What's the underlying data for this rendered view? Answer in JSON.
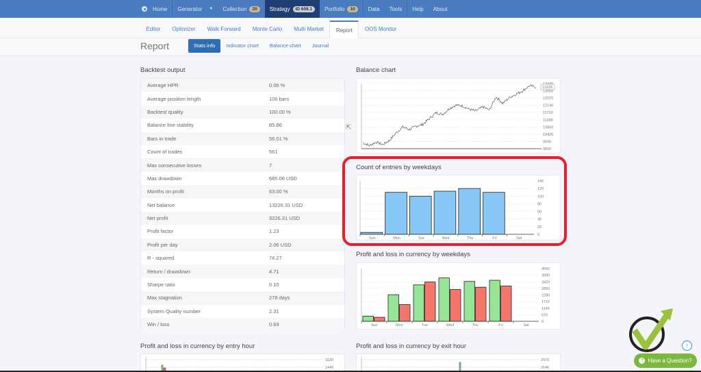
{
  "topnav": {
    "items": [
      {
        "label": "Home",
        "icon": "gear-icon"
      },
      {
        "label": "Generator",
        "caret": "▼"
      },
      {
        "label": "Collection",
        "badge": "20"
      },
      {
        "label": "Strategy",
        "badge": "ID 608.1",
        "active": true
      },
      {
        "label": "Portfolio",
        "badge": "10"
      },
      {
        "label": "Data"
      },
      {
        "label": "Tools"
      },
      {
        "label": "Help"
      },
      {
        "label": "About"
      }
    ]
  },
  "subnav": {
    "tabs": [
      "Editor",
      "Optimizer",
      "Walk Forward",
      "Monte Carlo",
      "Multi Market",
      "Report",
      "OOS Monitor"
    ],
    "active": "Report"
  },
  "report": {
    "title": "Report",
    "pills": [
      "Stats info",
      "Indicator chart",
      "Balance chart",
      "Journal"
    ],
    "active_pill": "Stats info"
  },
  "backtest": {
    "title": "Backtest output",
    "rows": [
      {
        "k": "Average HPR",
        "v": "0.06 %"
      },
      {
        "k": "Average position length",
        "v": "106 bars"
      },
      {
        "k": "Backtest quality",
        "v": "100.00 %"
      },
      {
        "k": "Balance line stability",
        "v": "85.86"
      },
      {
        "k": "Bars in trade",
        "v": "56.01 %"
      },
      {
        "k": "Count of trades",
        "v": "561"
      },
      {
        "k": "Max consecutive losses",
        "v": "7"
      },
      {
        "k": "Max drawdown",
        "v": "685.06 USD"
      },
      {
        "k": "Months on profit",
        "v": "63.00 %"
      },
      {
        "k": "Net balance",
        "v": "13226.31 USD"
      },
      {
        "k": "Net profit",
        "v": "3226.31 USD"
      },
      {
        "k": "Profit factor",
        "v": "1.23"
      },
      {
        "k": "Profit per day",
        "v": "2.06 USD"
      },
      {
        "k": "R - squared",
        "v": "74.27"
      },
      {
        "k": "Return / drawdown",
        "v": "4.71"
      },
      {
        "k": "Sharpe ratio",
        "v": "0.10"
      },
      {
        "k": "Max stagnation",
        "v": "278 days"
      },
      {
        "k": "System Quality number",
        "v": "2.31"
      },
      {
        "k": "Win / loss",
        "v": "0.69"
      }
    ]
  },
  "panels": {
    "balance": "Balance chart",
    "entries": "Count of entries by weekdays",
    "pnl_weekdays": "Profit and loss in currency by weekdays",
    "pnl_entry_hour": "Profit and loss in currency by entry hour",
    "pnl_exit_hour": "Profit and loss in currency by exit hour"
  },
  "chart_data": [
    {
      "type": "line",
      "title": "Balance chart",
      "yticks": [
        13430,
        13000,
        12570,
        12140,
        11710,
        11280,
        10850,
        10420,
        9990,
        9560
      ],
      "last_value_tag": "13226",
      "ylim": [
        9560,
        13430
      ],
      "trend_points": [
        9900,
        9750,
        9950,
        9800,
        10050,
        10500,
        10850,
        10700,
        10900,
        11000,
        11350,
        11700,
        11600,
        11950,
        12150,
        12100,
        11900,
        11800,
        12050,
        11850,
        12650,
        12250,
        12600,
        12800,
        13000,
        13300,
        13226
      ]
    },
    {
      "type": "bar",
      "title": "Count of entries by weekdays",
      "categories": [
        "Sun",
        "Mon",
        "Tue",
        "Wed",
        "Thu",
        "Fri",
        "Sat"
      ],
      "values": [
        5,
        110,
        100,
        113,
        120,
        110,
        0
      ],
      "yticks": [
        0,
        20,
        40,
        60,
        80,
        100,
        120,
        140
      ],
      "ylim": [
        0,
        140
      ],
      "color": "#87c8f7"
    },
    {
      "type": "bar",
      "title": "Profit and loss in currency by weekdays",
      "categories": [
        "Sun",
        "Mon",
        "Tue",
        "Wed",
        "Thu",
        "Fri",
        "Sat"
      ],
      "series": [
        {
          "name": "Profit",
          "color": "#96e596",
          "values": [
            450,
            2300,
            3150,
            3750,
            3450,
            3550,
            0
          ]
        },
        {
          "name": "Loss",
          "color": "#f7766b",
          "values": [
            350,
            1450,
            3400,
            2750,
            2950,
            3050,
            0
          ]
        }
      ],
      "yticks": [
        0,
        570,
        1140,
        1710,
        2280,
        2850,
        3420,
        3990,
        4560
      ],
      "ylim": [
        0,
        4560
      ]
    },
    {
      "type": "bar",
      "title": "Profit and loss in currency by entry hour",
      "yticks_visible": [
        1620,
        1440
      ]
    },
    {
      "type": "bar",
      "title": "Profit and loss in currency by exit hour",
      "yticks_visible": [
        2970,
        2640
      ]
    }
  ],
  "widget": {
    "ask_label": "Have a Question?",
    "up_icon": "↑"
  }
}
